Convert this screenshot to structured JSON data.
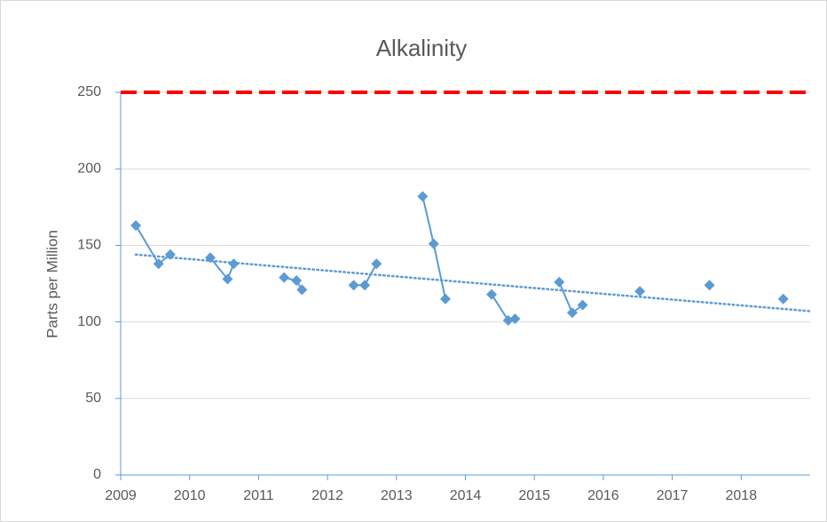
{
  "chart_data": {
    "type": "line",
    "title": "Alkalinity",
    "y_label": "Parts per Million",
    "x": [
      2009.22,
      2009.55,
      2009.72,
      null,
      2010.3,
      2010.55,
      2010.64,
      null,
      2011.37,
      2011.55,
      2011.63,
      null,
      2012.38,
      2012.54,
      2012.71,
      null,
      2013.38,
      2013.54,
      2013.71,
      null,
      2014.38,
      2014.62,
      2014.72,
      null,
      2015.36,
      2015.55,
      2015.7,
      null,
      2016.53,
      null,
      2017.54,
      null,
      2018.61
    ],
    "series": [
      {
        "color": "#5b9bd5",
        "values": [
          163,
          138,
          144,
          null,
          142,
          128,
          138,
          null,
          129,
          127,
          121,
          null,
          124,
          124,
          138,
          null,
          182,
          151,
          115,
          null,
          118,
          101,
          102,
          null,
          126,
          106,
          111,
          null,
          120,
          null,
          124,
          null,
          115
        ]
      }
    ],
    "trendline": {
      "x": [
        2009.22,
        2019
      ],
      "values": [
        144,
        107
      ],
      "color": "#5b9bd5"
    },
    "reference_line": {
      "value": 250,
      "color": "#ff0000"
    },
    "xlim": [
      2009,
      2019
    ],
    "xticks": [
      2009,
      2010,
      2011,
      2012,
      2013,
      2014,
      2015,
      2016,
      2017,
      2018
    ],
    "ylim": [
      0,
      250
    ],
    "yticks": [
      0,
      50,
      100,
      150,
      200,
      250
    ],
    "grid": true
  }
}
